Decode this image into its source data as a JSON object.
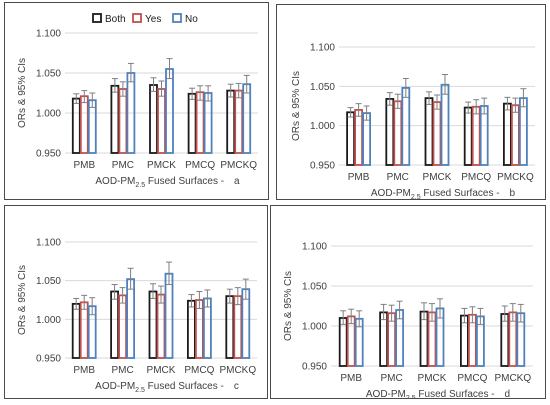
{
  "legend": {
    "items": [
      "Both",
      "Yes",
      "No"
    ]
  },
  "colors": {
    "Both": "#1a1a1a",
    "Yes": "#c0504d",
    "No": "#4f81bd",
    "errorbar": "#7f7f7f",
    "gridline": "#d9d9d9"
  },
  "chart_data": [
    {
      "type": "bar",
      "ylabel": "ORs & 95% CIs",
      "xlabel_main": "AOD-PM",
      "xlabel_sub": "2.5",
      "xlabel_rest": " Fused Surfaces -",
      "panel_letter": "a",
      "yticks": [
        "0.950",
        "1.000",
        "1.050",
        "1.100"
      ],
      "ylim": [
        0.95,
        1.1
      ],
      "categories": [
        "PMB",
        "PMC",
        "PMCK",
        "PMCQ",
        "PMCKQ"
      ],
      "series": [
        {
          "name": "Both",
          "values": [
            1.018,
            1.034,
            1.035,
            1.024,
            1.028
          ],
          "ci_low": [
            1.012,
            1.026,
            1.027,
            1.017,
            1.02
          ],
          "ci_high": [
            1.024,
            1.043,
            1.044,
            1.031,
            1.036
          ]
        },
        {
          "name": "Yes",
          "values": [
            1.021,
            1.03,
            1.03,
            1.026,
            1.028
          ],
          "ci_low": [
            1.013,
            1.021,
            1.021,
            1.016,
            1.019
          ],
          "ci_high": [
            1.028,
            1.039,
            1.04,
            1.034,
            1.037
          ]
        },
        {
          "name": "No",
          "values": [
            1.016,
            1.05,
            1.055,
            1.025,
            1.036
          ],
          "ci_low": [
            1.007,
            1.039,
            1.043,
            1.015,
            1.025
          ],
          "ci_high": [
            1.025,
            1.062,
            1.068,
            1.034,
            1.047
          ]
        }
      ],
      "grid": true
    },
    {
      "type": "bar",
      "ylabel": "ORs & 95% CIs",
      "xlabel_main": "AOD-PM",
      "xlabel_sub": "2.5",
      "xlabel_rest": " Fused Surfaces -",
      "panel_letter": "b",
      "yticks": [
        "0.950",
        "1.000",
        "1.050",
        "1.100"
      ],
      "ylim": [
        0.95,
        1.1
      ],
      "categories": [
        "PMB",
        "PMC",
        "PMCK",
        "PMCQ",
        "PMCKQ"
      ],
      "series": [
        {
          "name": "Both",
          "values": [
            1.017,
            1.034,
            1.035,
            1.023,
            1.028
          ],
          "ci_low": [
            1.011,
            1.026,
            1.027,
            1.016,
            1.02
          ],
          "ci_high": [
            1.023,
            1.042,
            1.043,
            1.03,
            1.036
          ]
        },
        {
          "name": "Yes",
          "values": [
            1.02,
            1.031,
            1.03,
            1.024,
            1.026
          ],
          "ci_low": [
            1.012,
            1.022,
            1.021,
            1.015,
            1.017
          ],
          "ci_high": [
            1.028,
            1.04,
            1.039,
            1.033,
            1.035
          ]
        },
        {
          "name": "No",
          "values": [
            1.016,
            1.048,
            1.052,
            1.025,
            1.035
          ],
          "ci_low": [
            1.007,
            1.036,
            1.04,
            1.015,
            1.024
          ],
          "ci_high": [
            1.025,
            1.06,
            1.065,
            1.035,
            1.047
          ]
        }
      ],
      "grid": true
    },
    {
      "type": "bar",
      "ylabel": "ORs & 95% CIs",
      "xlabel_main": "AOD-PM",
      "xlabel_sub": "2.5",
      "xlabel_rest": " Fused Surfaces -",
      "panel_letter": "c",
      "yticks": [
        "0.950",
        "1.000",
        "1.050",
        "1.100"
      ],
      "ylim": [
        0.95,
        1.1
      ],
      "categories": [
        "PMB",
        "PMC",
        "PMCK",
        "PMCQ",
        "PMCKQ"
      ],
      "series": [
        {
          "name": "Both",
          "values": [
            1.02,
            1.036,
            1.036,
            1.024,
            1.03
          ],
          "ci_low": [
            1.013,
            1.026,
            1.027,
            1.016,
            1.021
          ],
          "ci_high": [
            1.027,
            1.045,
            1.046,
            1.032,
            1.039
          ]
        },
        {
          "name": "Yes",
          "values": [
            1.022,
            1.031,
            1.032,
            1.025,
            1.03
          ],
          "ci_low": [
            1.013,
            1.021,
            1.021,
            1.014,
            1.019
          ],
          "ci_high": [
            1.031,
            1.041,
            1.043,
            1.036,
            1.041
          ]
        },
        {
          "name": "No",
          "values": [
            1.017,
            1.052,
            1.059,
            1.027,
            1.039
          ],
          "ci_low": [
            1.006,
            1.039,
            1.045,
            1.016,
            1.026
          ],
          "ci_high": [
            1.028,
            1.066,
            1.074,
            1.038,
            1.052
          ]
        }
      ],
      "grid": true
    },
    {
      "type": "bar",
      "ylabel": "ORs & 95% CIs",
      "xlabel_main": "AOD-PM",
      "xlabel_sub": "2.5",
      "xlabel_rest": " Fused Surfaces -",
      "panel_letter": "d",
      "yticks": [
        "0.950",
        "1.000",
        "1.050",
        "1.100"
      ],
      "ylim": [
        0.95,
        1.1
      ],
      "categories": [
        "PMB",
        "PMC",
        "PMCK",
        "PMCQ",
        "PMCKQ"
      ],
      "series": [
        {
          "name": "Both",
          "values": [
            1.01,
            1.017,
            1.018,
            1.013,
            1.015
          ],
          "ci_low": [
            1.002,
            1.008,
            1.008,
            1.004,
            1.006
          ],
          "ci_high": [
            1.019,
            1.027,
            1.029,
            1.022,
            1.025
          ]
        },
        {
          "name": "Yes",
          "values": [
            1.012,
            1.016,
            1.017,
            1.014,
            1.017
          ],
          "ci_low": [
            1.003,
            1.006,
            1.006,
            1.004,
            1.006
          ],
          "ci_high": [
            1.021,
            1.026,
            1.028,
            1.024,
            1.028
          ]
        },
        {
          "name": "No",
          "values": [
            1.009,
            1.02,
            1.022,
            1.012,
            1.016
          ],
          "ci_low": [
            0.999,
            1.009,
            1.01,
            1.002,
            1.005
          ],
          "ci_high": [
            1.019,
            1.031,
            1.034,
            1.022,
            1.027
          ]
        }
      ],
      "grid": true
    }
  ]
}
